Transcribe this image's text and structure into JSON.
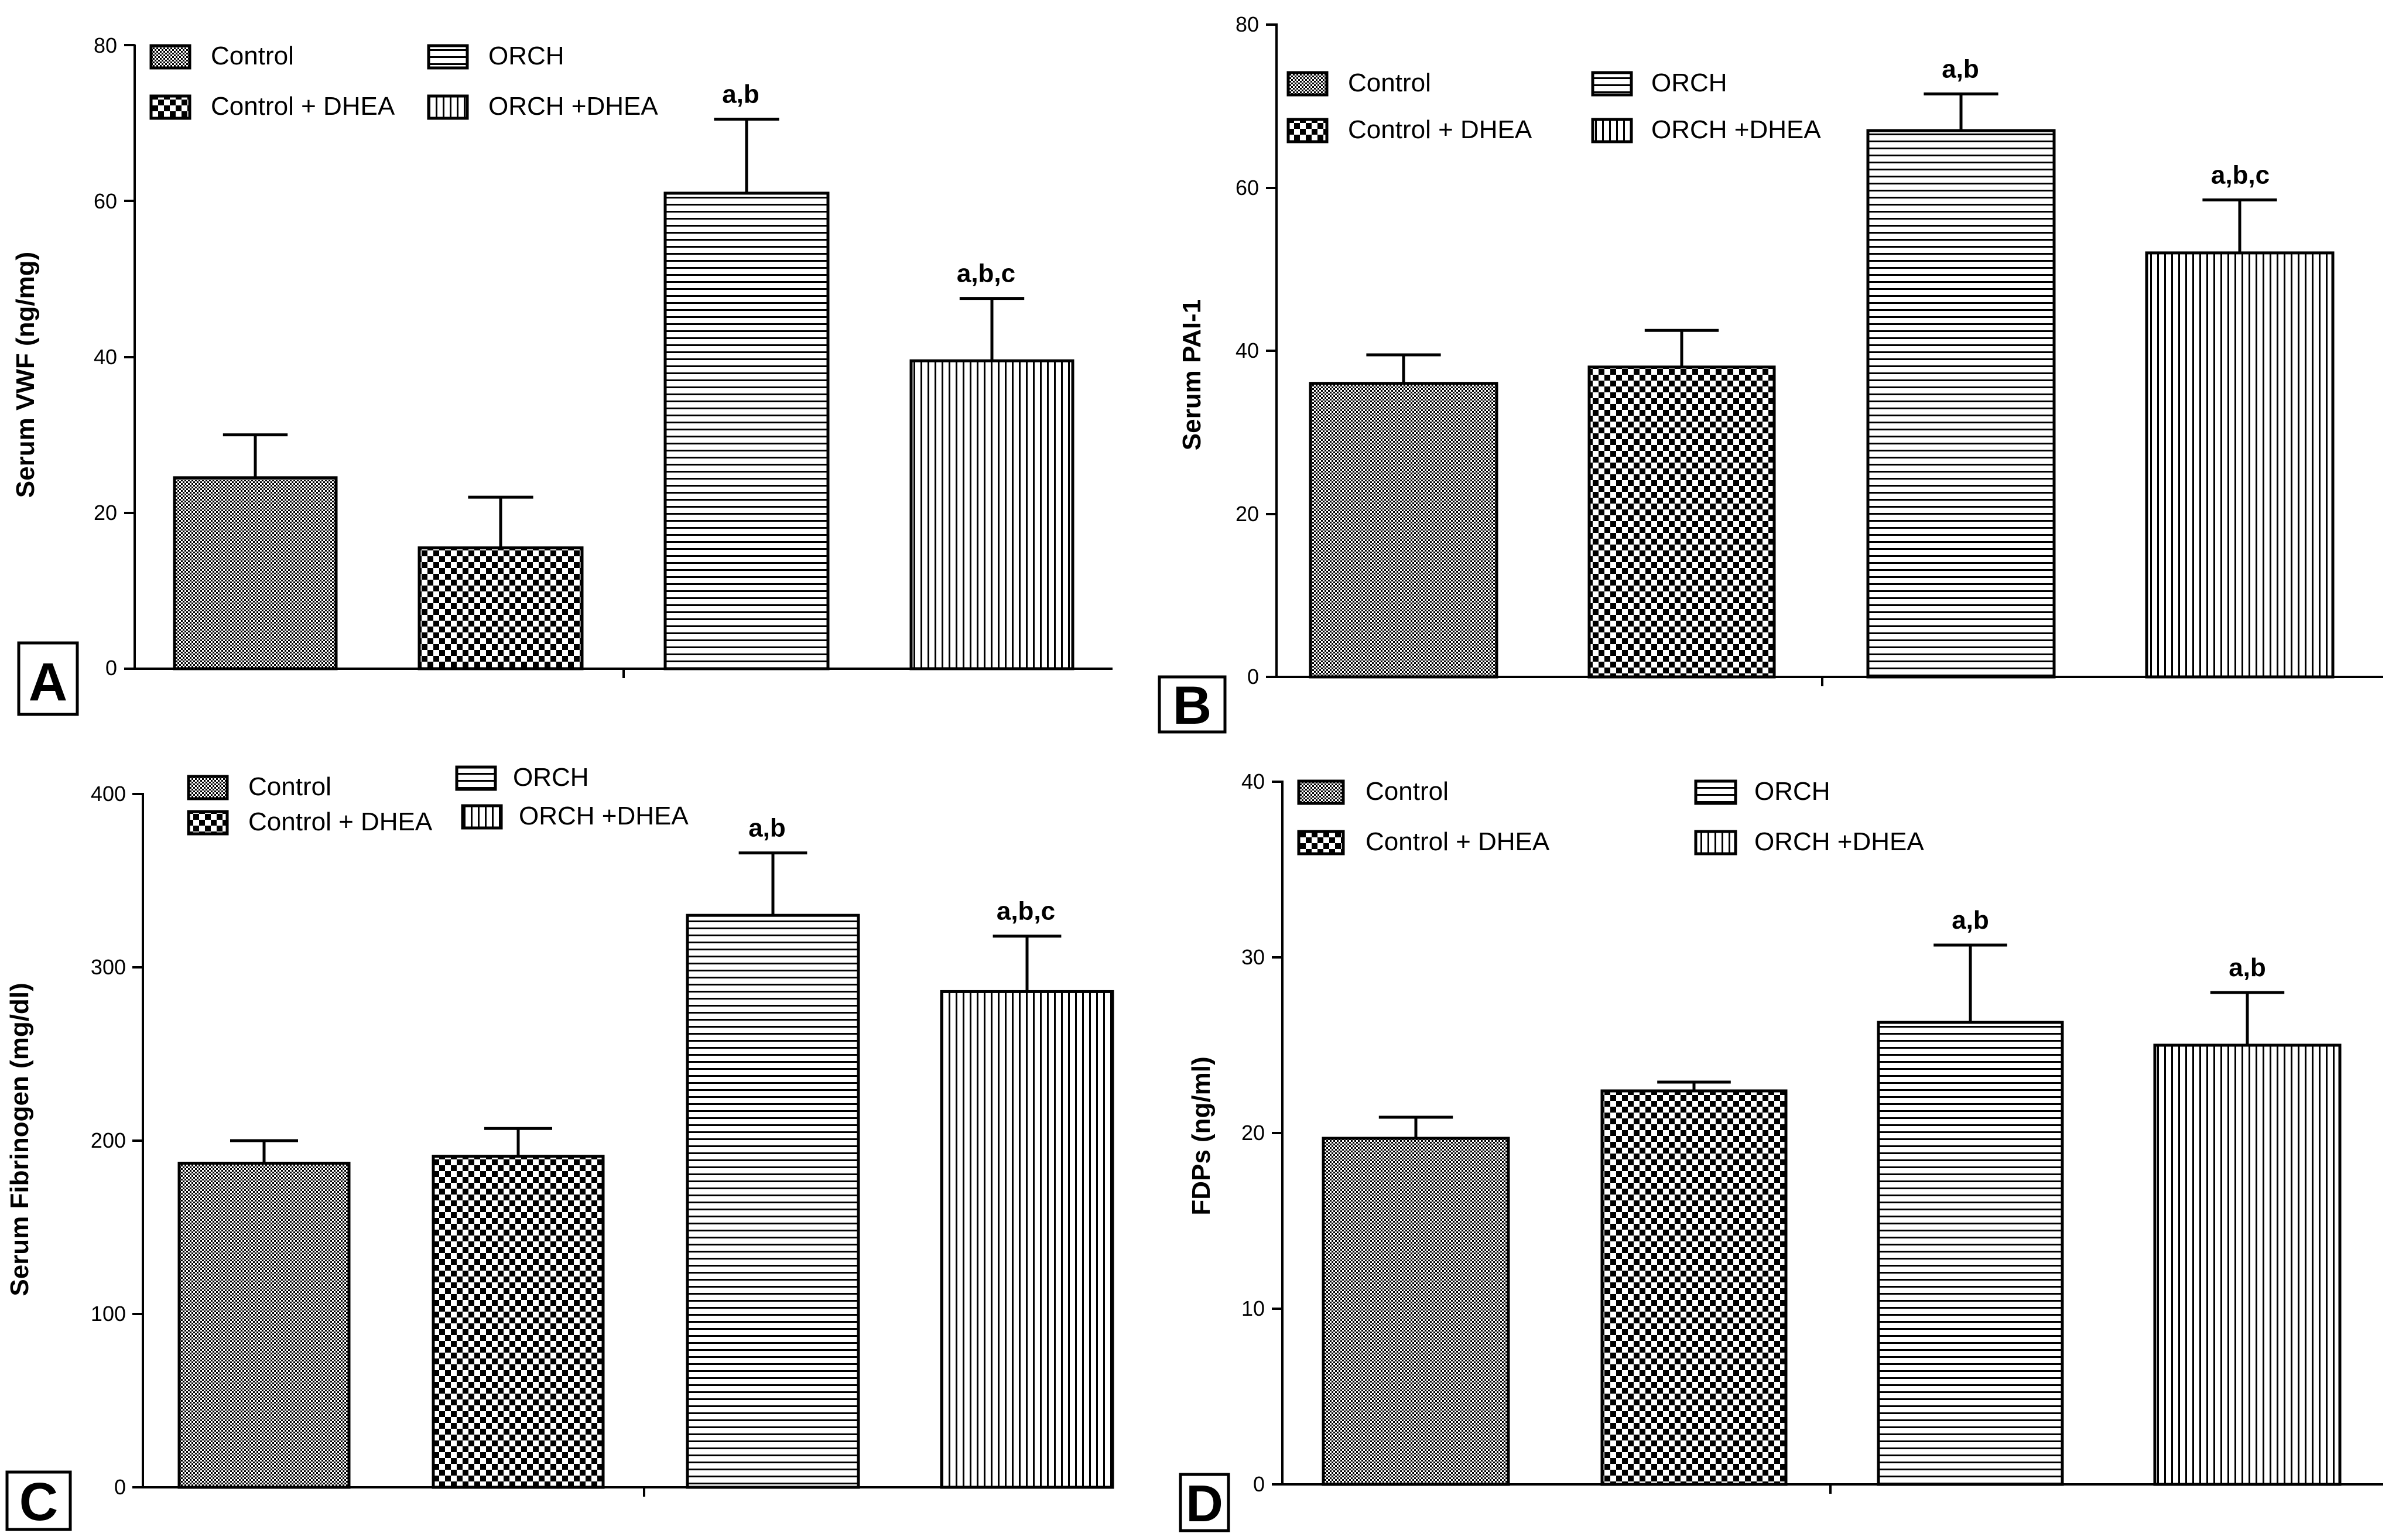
{
  "colors": {
    "ink": "#000000",
    "background": "#ffffff"
  },
  "legend_labels": {
    "control": "Control",
    "orch": "ORCH",
    "control_dhea": "Control + DHEA",
    "orch_dhea": "ORCH +DHEA"
  },
  "chart_data": [
    {
      "panel": "A",
      "type": "bar",
      "ylabel": "Serum VWF (ng/mg)",
      "ylim": [
        0,
        80
      ],
      "yticks": [
        "0",
        "20",
        "40",
        "60",
        "80"
      ],
      "series": [
        {
          "name": "Control",
          "value": 24.5,
          "error": 5.5,
          "annotation": ""
        },
        {
          "name": "Control + DHEA",
          "value": 15.5,
          "error": 6.5,
          "annotation": ""
        },
        {
          "name": "ORCH",
          "value": 61,
          "error": 9.5,
          "annotation": "a,b"
        },
        {
          "name": "ORCH +DHEA",
          "value": 39.5,
          "error": 8,
          "annotation": "a,b,c"
        }
      ]
    },
    {
      "panel": "B",
      "type": "bar",
      "ylabel": "Serum PAI-1",
      "ylim": [
        0,
        80
      ],
      "yticks": [
        "0",
        "20",
        "40",
        "60",
        "80"
      ],
      "series": [
        {
          "name": "Control",
          "value": 36,
          "error": 3.5,
          "annotation": ""
        },
        {
          "name": "Control + DHEA",
          "value": 38,
          "error": 4.5,
          "annotation": ""
        },
        {
          "name": "ORCH",
          "value": 67,
          "error": 4.5,
          "annotation": "a,b"
        },
        {
          "name": "ORCH +DHEA",
          "value": 52,
          "error": 6.5,
          "annotation": "a,b,c"
        }
      ]
    },
    {
      "panel": "C",
      "type": "bar",
      "ylabel": "Serum Fibrinogen (mg/dl)",
      "ylim": [
        0,
        400
      ],
      "yticks": [
        "0",
        "100",
        "200",
        "300",
        "400"
      ],
      "series": [
        {
          "name": "Control",
          "value": 187,
          "error": 13,
          "annotation": ""
        },
        {
          "name": "Control + DHEA",
          "value": 191,
          "error": 16,
          "annotation": ""
        },
        {
          "name": "ORCH",
          "value": 330,
          "error": 36,
          "annotation": "a,b"
        },
        {
          "name": "ORCH +DHEA",
          "value": 286,
          "error": 32,
          "annotation": "a,b,c"
        }
      ]
    },
    {
      "panel": "D",
      "type": "bar",
      "ylabel": "FDPs (ng/ml)",
      "ylim": [
        0,
        40
      ],
      "yticks": [
        "0",
        "10",
        "20",
        "30",
        "40"
      ],
      "series": [
        {
          "name": "Control",
          "value": 19.7,
          "error": 1.2,
          "annotation": ""
        },
        {
          "name": "Control + DHEA",
          "value": 22.4,
          "error": 0.5,
          "annotation": ""
        },
        {
          "name": "ORCH",
          "value": 26.3,
          "error": 4.4,
          "annotation": "a,b"
        },
        {
          "name": "ORCH +DHEA",
          "value": 25,
          "error": 3,
          "annotation": "a,b"
        }
      ]
    }
  ]
}
